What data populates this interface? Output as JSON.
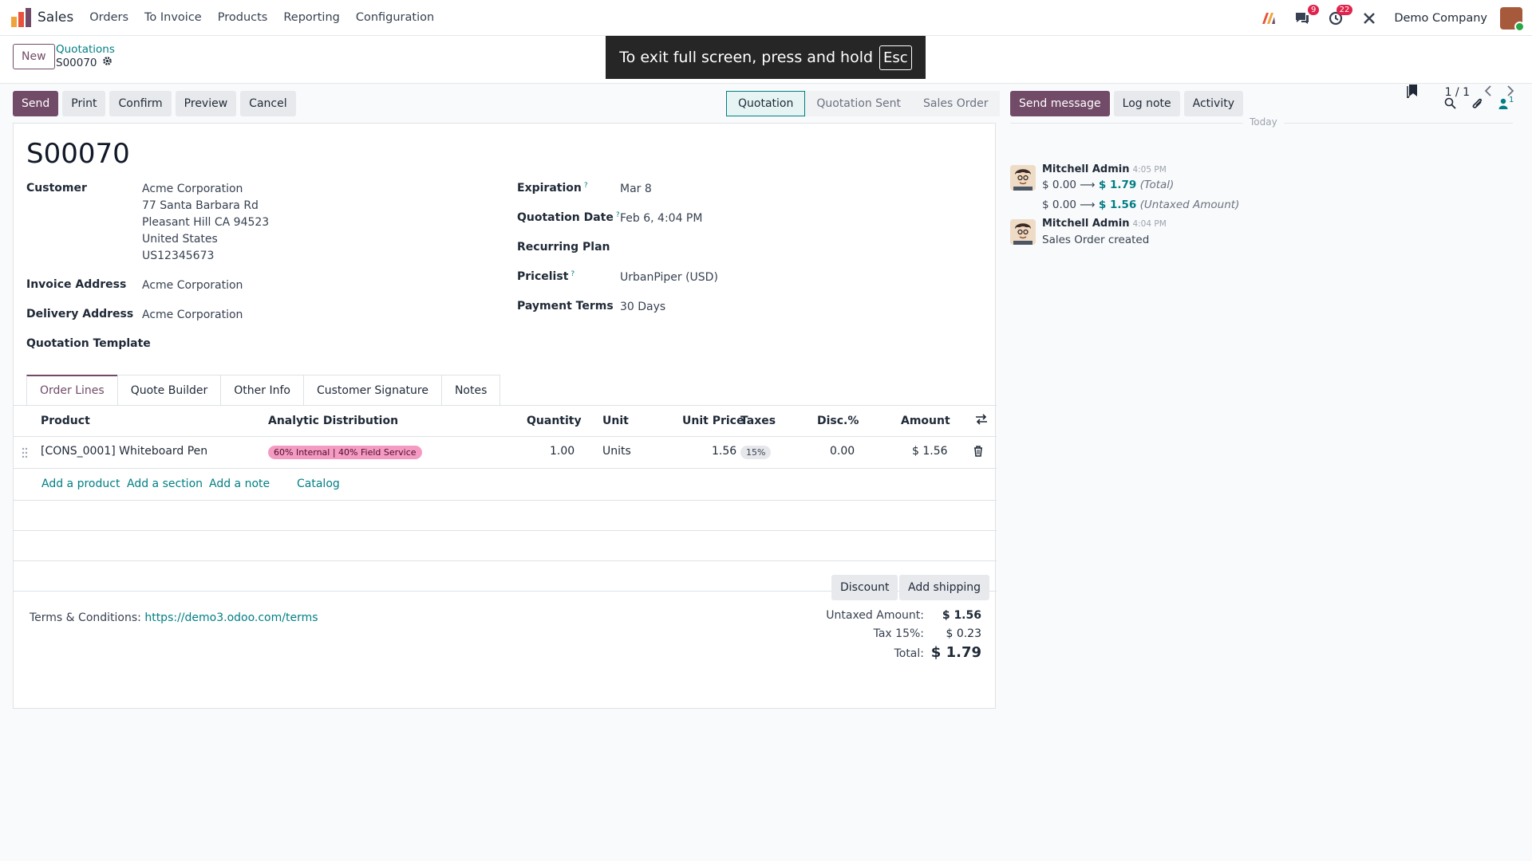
{
  "nav": {
    "app_name": "Sales",
    "menu": [
      "Orders",
      "To Invoice",
      "Products",
      "Reporting",
      "Configuration"
    ],
    "messages_count": "9",
    "activities_count": "22",
    "company": "Demo Company"
  },
  "control": {
    "new_label": "New",
    "breadcrumb_parent": "Quotations",
    "breadcrumb_current": "S00070",
    "pager": "1 / 1",
    "fullscreen_msg": "To exit full screen, press and hold",
    "esc_key": "Esc"
  },
  "actions": [
    "Send",
    "Print",
    "Confirm",
    "Preview",
    "Cancel"
  ],
  "statusbar": [
    "Quotation",
    "Quotation Sent",
    "Sales Order"
  ],
  "chatter_buttons": [
    "Send message",
    "Log note",
    "Activity"
  ],
  "followers_count": "1",
  "form": {
    "title": "S00070",
    "customer_label": "Customer",
    "customer_lines": [
      "Acme Corporation",
      "77 Santa Barbara Rd",
      "Pleasant Hill CA 94523",
      "United States",
      "US12345673"
    ],
    "invoice_label": "Invoice Address",
    "invoice_value": "Acme Corporation",
    "delivery_label": "Delivery Address",
    "delivery_value": "Acme Corporation",
    "template_label": "Quotation Template",
    "expiration_label": "Expiration",
    "expiration_value": "Mar 8",
    "qdate_label": "Quotation Date",
    "qdate_value": "Feb 6, 4:04 PM",
    "recurring_label": "Recurring Plan",
    "pricelist_label": "Pricelist",
    "pricelist_value": "UrbanPiper (USD)",
    "terms_label": "Payment Terms",
    "terms_value": "30 Days",
    "help_mark": "?"
  },
  "tabs": [
    "Order Lines",
    "Quote Builder",
    "Other Info",
    "Customer Signature",
    "Notes"
  ],
  "table": {
    "headers": [
      "Product",
      "Analytic Distribution",
      "Quantity",
      "Unit",
      "Unit Price",
      "Taxes",
      "Disc.%",
      "Amount"
    ],
    "row": {
      "product": "[CONS_0001] Whiteboard Pen",
      "analytic": "60% Internal | 40% Field Service",
      "quantity": "1.00",
      "unit": "Units",
      "unit_price": "1.56",
      "taxes": "15%",
      "discount": "0.00",
      "amount": "$ 1.56"
    },
    "links": [
      "Add a product",
      "Add a section",
      "Add a note",
      "Catalog"
    ]
  },
  "footer": {
    "discount_btn": "Discount",
    "shipping_btn": "Add shipping",
    "terms_label": "Terms & Conditions:",
    "terms_url": "https://demo3.odoo.com/terms",
    "untaxed_label": "Untaxed Amount:",
    "untaxed_value": "$ 1.56",
    "tax_label": "Tax 15%:",
    "tax_value": "$ 0.23",
    "total_label": "Total:",
    "total_value": "$ 1.79"
  },
  "chatter": {
    "today": "Today",
    "messages": [
      {
        "author": "Mitchell Admin",
        "time": "4:05 PM",
        "changes": [
          {
            "old": "$ 0.00",
            "arrow": "⟶",
            "new": "$ 1.79",
            "field": "(Total)"
          },
          {
            "old": "$ 0.00",
            "arrow": "⟶",
            "new": "$ 1.56",
            "field": "(Untaxed Amount)"
          }
        ]
      },
      {
        "author": "Mitchell Admin",
        "time": "4:04 PM",
        "body": "Sales Order created"
      }
    ]
  },
  "colors": {
    "primary": "#714b67",
    "link": "#017e84",
    "analytic_pill": "#f59ac2"
  }
}
